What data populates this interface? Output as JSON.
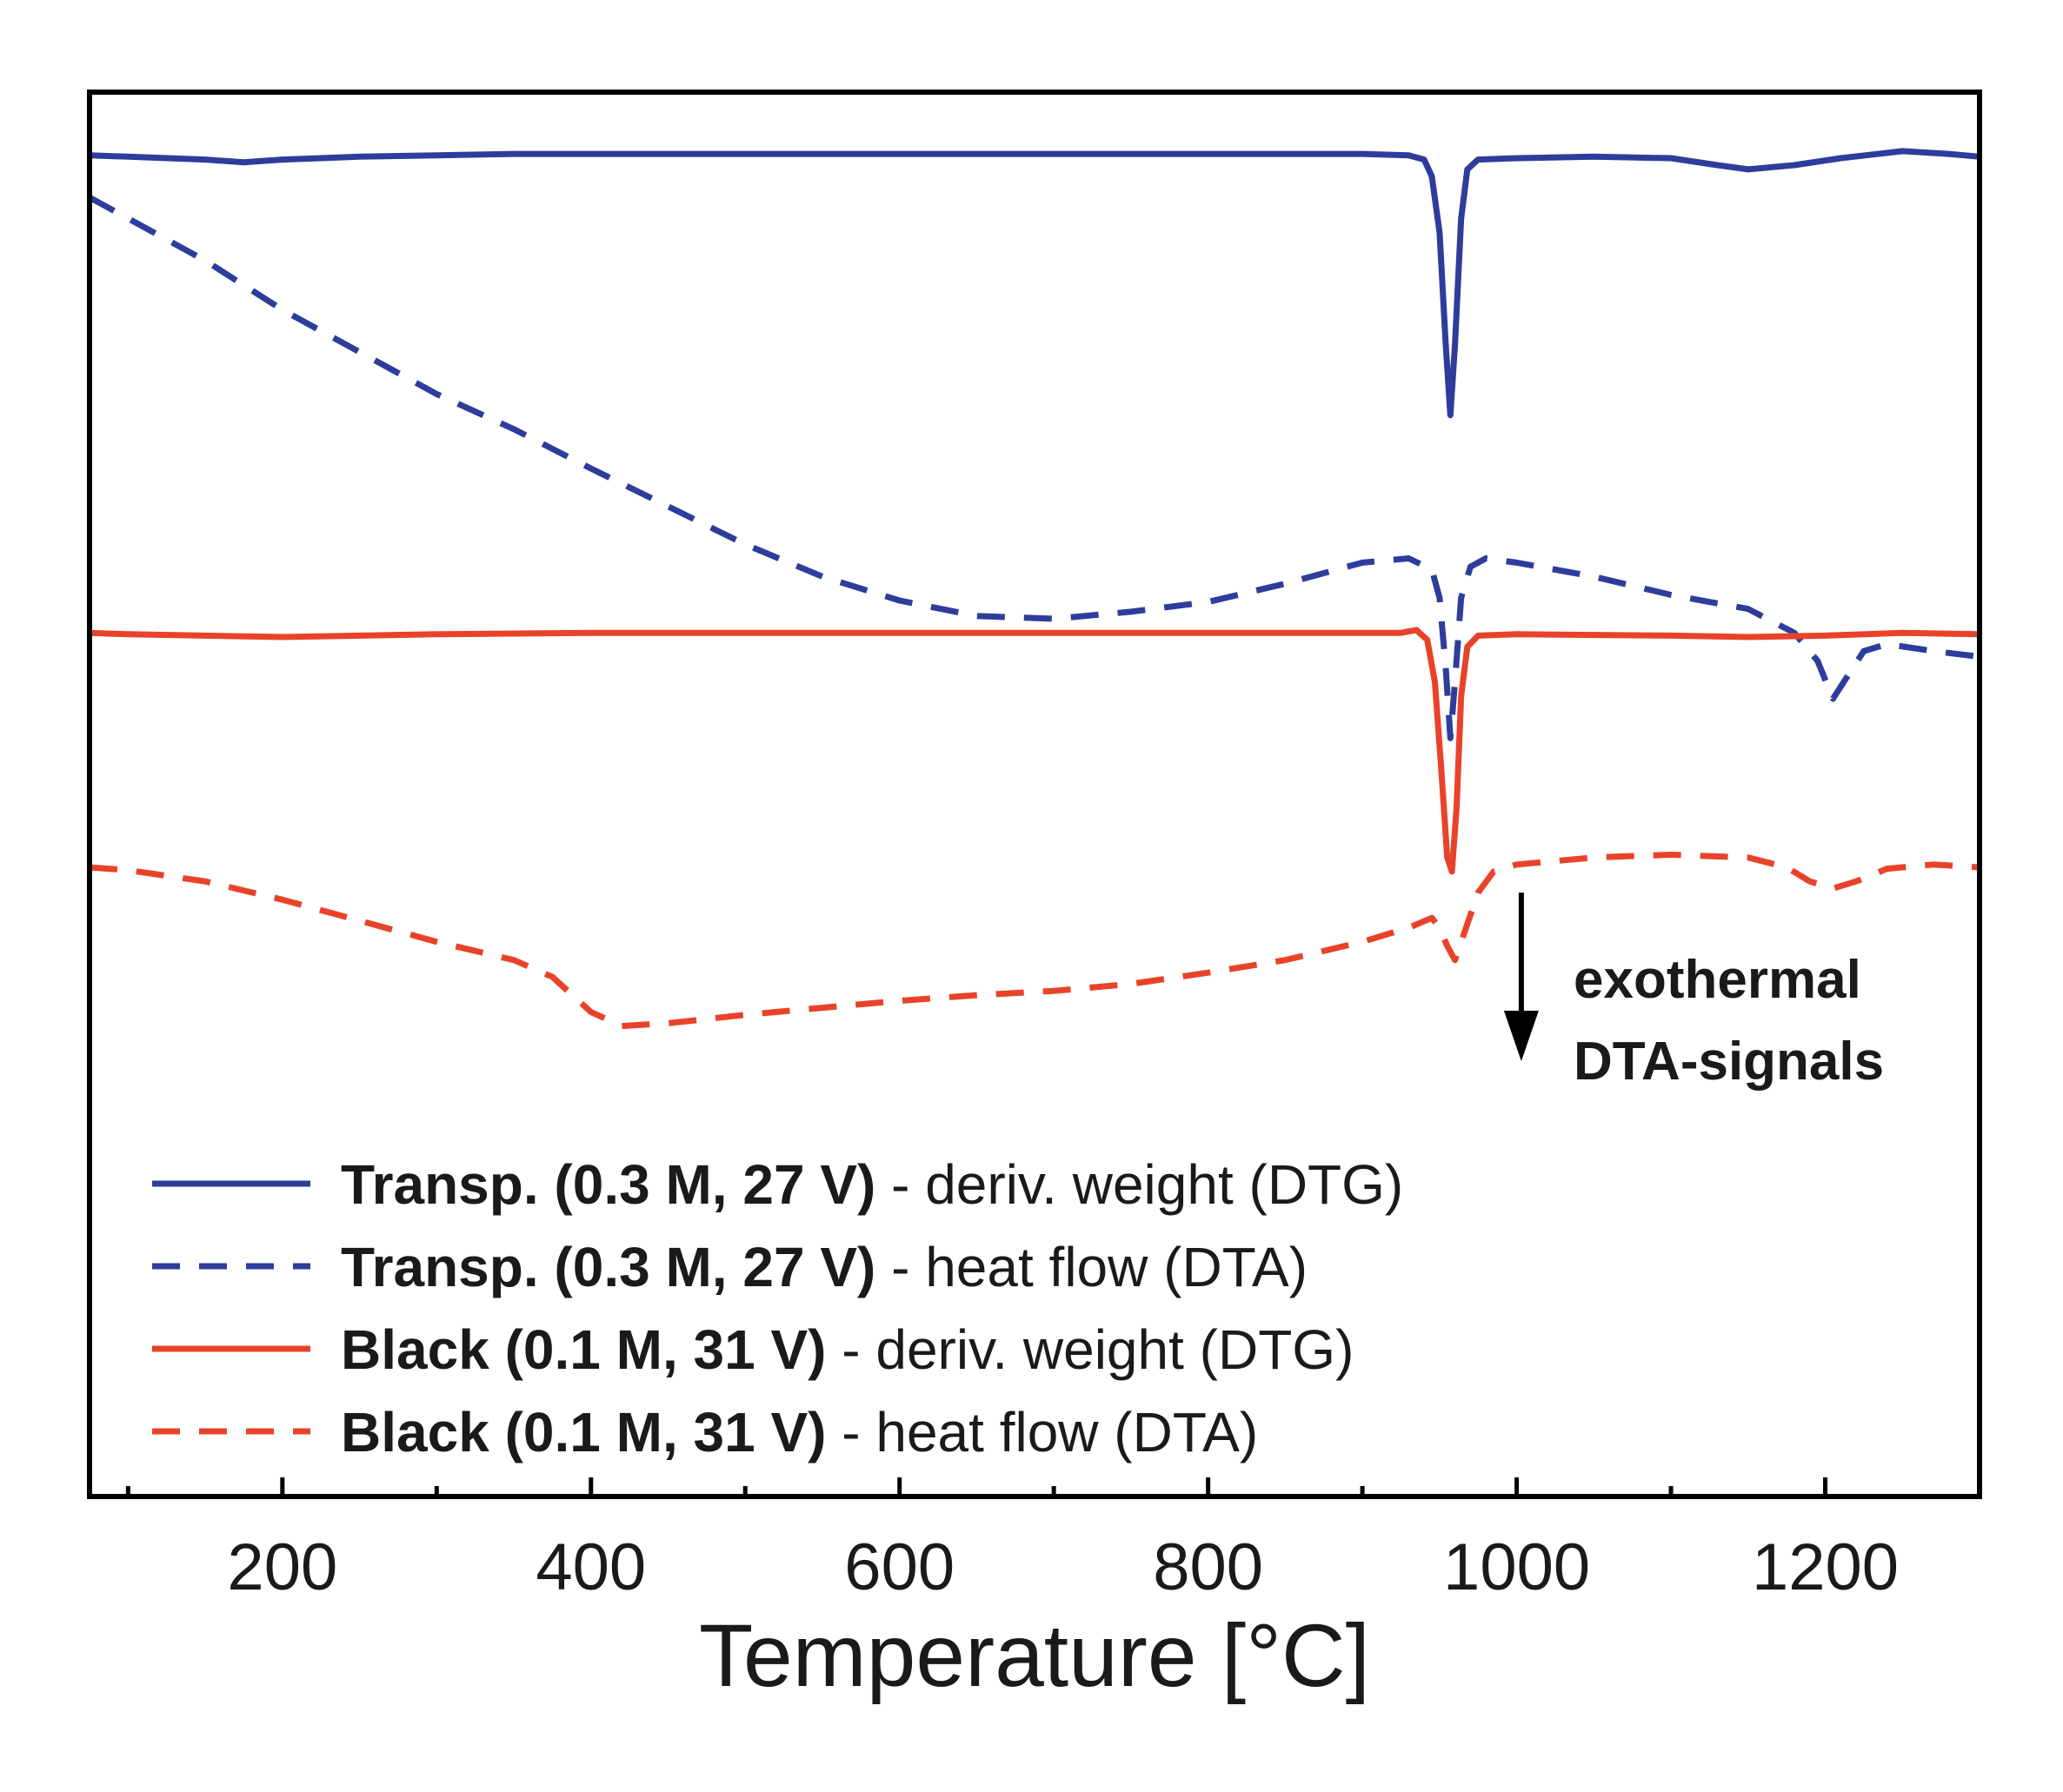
{
  "chart_data": {
    "type": "line",
    "title": "",
    "xlabel": "Temperature [°C]",
    "ylabel": "",
    "xlim": [
      75,
      1300
    ],
    "ylim": [
      0,
      10
    ],
    "x_ticks": [
      200,
      400,
      600,
      800,
      1000,
      1200
    ],
    "x_tick_labels": [
      "200",
      "400",
      "600",
      "800",
      "1000",
      "1200"
    ],
    "x_minor_ticks": [
      100,
      300,
      500,
      700,
      900,
      1100,
      1300
    ],
    "grid": false,
    "legend_position": "bottom-left",
    "series": [
      {
        "name_bold": "Transp. (0.3 M, 27 V)",
        "name_rest": " - deriv. weight (DTG)",
        "color": "#2e3d9c",
        "dash": "solid",
        "points": [
          [
            75,
            9.55
          ],
          [
            100,
            9.54
          ],
          [
            150,
            9.52
          ],
          [
            175,
            9.5
          ],
          [
            200,
            9.52
          ],
          [
            250,
            9.54
          ],
          [
            300,
            9.55
          ],
          [
            350,
            9.56
          ],
          [
            400,
            9.56
          ],
          [
            500,
            9.56
          ],
          [
            600,
            9.56
          ],
          [
            700,
            9.56
          ],
          [
            800,
            9.56
          ],
          [
            900,
            9.56
          ],
          [
            930,
            9.55
          ],
          [
            940,
            9.52
          ],
          [
            945,
            9.4
          ],
          [
            950,
            9.0
          ],
          [
            954,
            8.2
          ],
          [
            957,
            7.7
          ],
          [
            960,
            8.2
          ],
          [
            964,
            9.1
          ],
          [
            968,
            9.45
          ],
          [
            975,
            9.52
          ],
          [
            1000,
            9.53
          ],
          [
            1050,
            9.54
          ],
          [
            1100,
            9.53
          ],
          [
            1130,
            9.48
          ],
          [
            1150,
            9.45
          ],
          [
            1180,
            9.48
          ],
          [
            1210,
            9.53
          ],
          [
            1250,
            9.58
          ],
          [
            1280,
            9.56
          ],
          [
            1300,
            9.54
          ]
        ]
      },
      {
        "name_bold": "Transp. (0.3 M, 27 V)",
        "name_rest": " - heat flow (DTA)",
        "color": "#2e3d9c",
        "dash": "dashed",
        "points": [
          [
            75,
            9.25
          ],
          [
            100,
            9.1
          ],
          [
            150,
            8.8
          ],
          [
            200,
            8.45
          ],
          [
            250,
            8.15
          ],
          [
            300,
            7.85
          ],
          [
            350,
            7.6
          ],
          [
            400,
            7.32
          ],
          [
            450,
            7.05
          ],
          [
            500,
            6.78
          ],
          [
            550,
            6.55
          ],
          [
            600,
            6.38
          ],
          [
            650,
            6.27
          ],
          [
            700,
            6.25
          ],
          [
            750,
            6.3
          ],
          [
            800,
            6.37
          ],
          [
            850,
            6.5
          ],
          [
            900,
            6.65
          ],
          [
            930,
            6.68
          ],
          [
            945,
            6.6
          ],
          [
            950,
            6.4
          ],
          [
            954,
            5.9
          ],
          [
            957,
            5.4
          ],
          [
            960,
            5.8
          ],
          [
            964,
            6.4
          ],
          [
            970,
            6.62
          ],
          [
            980,
            6.68
          ],
          [
            1000,
            6.65
          ],
          [
            1050,
            6.55
          ],
          [
            1100,
            6.42
          ],
          [
            1150,
            6.32
          ],
          [
            1180,
            6.15
          ],
          [
            1195,
            5.95
          ],
          [
            1205,
            5.68
          ],
          [
            1212,
            5.8
          ],
          [
            1225,
            6.02
          ],
          [
            1240,
            6.07
          ],
          [
            1270,
            6.02
          ],
          [
            1300,
            5.98
          ]
        ]
      },
      {
        "name_bold": "Black (0.1 M, 31 V)",
        "name_rest": " - deriv. weight (DTG)",
        "color": "#e8432a",
        "dash": "solid",
        "points": [
          [
            75,
            6.15
          ],
          [
            100,
            6.14
          ],
          [
            200,
            6.12
          ],
          [
            300,
            6.14
          ],
          [
            400,
            6.15
          ],
          [
            500,
            6.15
          ],
          [
            600,
            6.15
          ],
          [
            700,
            6.15
          ],
          [
            800,
            6.15
          ],
          [
            900,
            6.15
          ],
          [
            925,
            6.15
          ],
          [
            935,
            6.17
          ],
          [
            942,
            6.1
          ],
          [
            947,
            5.8
          ],
          [
            951,
            5.2
          ],
          [
            955,
            4.55
          ],
          [
            958,
            4.45
          ],
          [
            961,
            4.9
          ],
          [
            964,
            5.7
          ],
          [
            968,
            6.05
          ],
          [
            975,
            6.13
          ],
          [
            1000,
            6.14
          ],
          [
            1100,
            6.13
          ],
          [
            1150,
            6.12
          ],
          [
            1200,
            6.13
          ],
          [
            1250,
            6.15
          ],
          [
            1300,
            6.14
          ]
        ]
      },
      {
        "name_bold": "Black (0.1 M, 31 V)",
        "name_rest": " - heat flow (DTA)",
        "color": "#e8432a",
        "dash": "dashed",
        "points": [
          [
            75,
            4.48
          ],
          [
            100,
            4.46
          ],
          [
            150,
            4.38
          ],
          [
            200,
            4.25
          ],
          [
            250,
            4.1
          ],
          [
            300,
            3.95
          ],
          [
            350,
            3.82
          ],
          [
            375,
            3.7
          ],
          [
            400,
            3.45
          ],
          [
            420,
            3.35
          ],
          [
            450,
            3.37
          ],
          [
            500,
            3.43
          ],
          [
            550,
            3.48
          ],
          [
            600,
            3.53
          ],
          [
            650,
            3.57
          ],
          [
            700,
            3.6
          ],
          [
            750,
            3.65
          ],
          [
            800,
            3.73
          ],
          [
            850,
            3.82
          ],
          [
            900,
            3.95
          ],
          [
            930,
            4.05
          ],
          [
            945,
            4.12
          ],
          [
            950,
            4.05
          ],
          [
            955,
            3.92
          ],
          [
            960,
            3.82
          ],
          [
            965,
            3.98
          ],
          [
            975,
            4.3
          ],
          [
            985,
            4.45
          ],
          [
            1000,
            4.5
          ],
          [
            1050,
            4.55
          ],
          [
            1100,
            4.57
          ],
          [
            1150,
            4.55
          ],
          [
            1175,
            4.48
          ],
          [
            1190,
            4.38
          ],
          [
            1205,
            4.33
          ],
          [
            1220,
            4.38
          ],
          [
            1240,
            4.47
          ],
          [
            1270,
            4.5
          ],
          [
            1300,
            4.48
          ]
        ]
      }
    ],
    "annotation": {
      "lines": [
        "exothermal",
        "DTA-signals"
      ],
      "arrow_x": 1003,
      "arrow_from_y": 4.3,
      "arrow_to_y": 3.1
    }
  }
}
